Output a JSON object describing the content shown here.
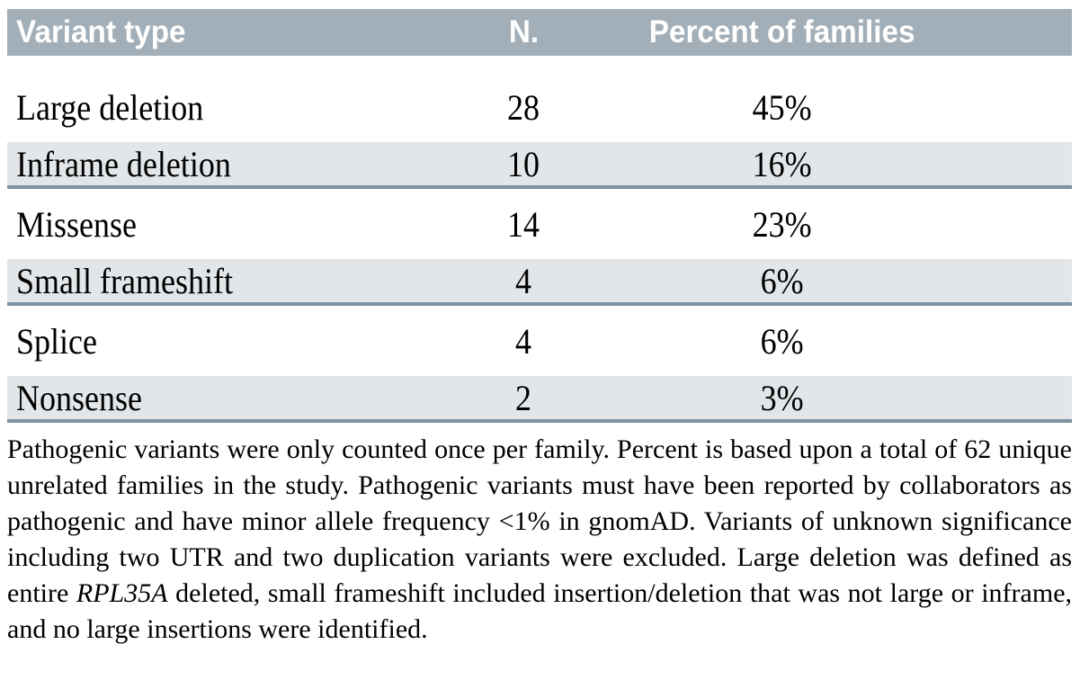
{
  "colors": {
    "header_bg": "#a3afb8",
    "header_text": "#ffffff",
    "row_alt_bg": "#e2e6e9",
    "rule": "#7e93a2",
    "body_text": "#000000"
  },
  "table": {
    "columns": [
      "Variant type",
      "N.",
      "Percent of families"
    ],
    "rows": [
      {
        "variant": "Large deletion",
        "n": "28",
        "percent": "45%"
      },
      {
        "variant": "Inframe deletion",
        "n": "10",
        "percent": "16%"
      },
      {
        "variant": "Missense",
        "n": "14",
        "percent": "23%"
      },
      {
        "variant": "Small frameshift",
        "n": "4",
        "percent": "6%"
      },
      {
        "variant": "Splice",
        "n": "4",
        "percent": "6%"
      },
      {
        "variant": "Nonsense",
        "n": "2",
        "percent": "3%"
      }
    ]
  },
  "note": {
    "part1": "Pathogenic variants were only counted once per family. Percent is based upon a total of 62 unique unrelated families in the study. Pathogenic variants must have been reported by collaborators as pathogenic and have minor allele frequency <1% in gnomAD. Variants of unknown significance including two UTR and two duplication variants were excluded. Large deletion was defined as entire ",
    "gene": "RPL35A",
    "part2": " deleted, small frameshift included insertion/deletion that was not large or inframe, and no large insertions were identified."
  },
  "chart_data": {
    "type": "table",
    "title": "",
    "columns": [
      "Variant type",
      "N.",
      "Percent of families"
    ],
    "categories": [
      "Large deletion",
      "Inframe deletion",
      "Missense",
      "Small frameshift",
      "Splice",
      "Nonsense"
    ],
    "series": [
      {
        "name": "N.",
        "values": [
          28,
          10,
          14,
          4,
          4,
          2
        ]
      },
      {
        "name": "Percent of families",
        "values": [
          "45%",
          "16%",
          "23%",
          "6%",
          "6%",
          "3%"
        ]
      }
    ]
  }
}
